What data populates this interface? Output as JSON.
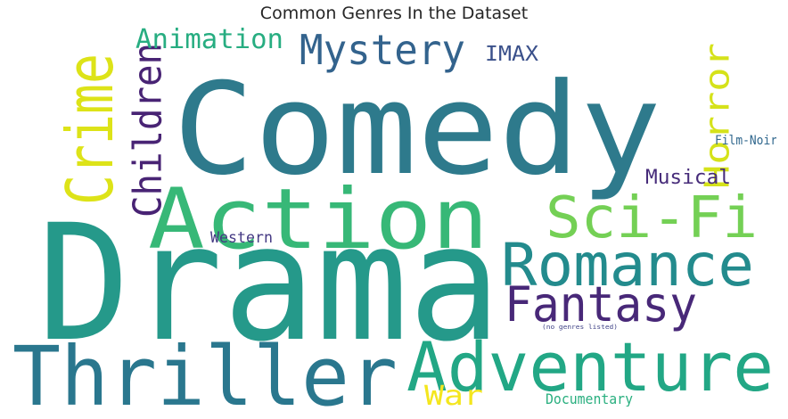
{
  "chart_data": {
    "type": "wordcloud",
    "title": "Common Genres In the Dataset",
    "background": "#ffffff",
    "colormap": "viridis",
    "words": [
      {
        "text": "Drama",
        "color": "#25998a"
      },
      {
        "text": "Comedy",
        "color": "#2e7a8c"
      },
      {
        "text": "Action",
        "color": "#37b877"
      },
      {
        "text": "Thriller",
        "color": "#2a778e"
      },
      {
        "text": "Adventure",
        "color": "#22a785"
      },
      {
        "text": "Romance",
        "color": "#238b8d"
      },
      {
        "text": "Sci-Fi",
        "color": "#74d055"
      },
      {
        "text": "Crime",
        "color": "#dde318"
      },
      {
        "text": "Fantasy",
        "color": "#482878"
      },
      {
        "text": "Mystery",
        "color": "#33638d"
      },
      {
        "text": "Children",
        "color": "#482374"
      },
      {
        "text": "Horror",
        "color": "#d5e21a"
      },
      {
        "text": "Animation",
        "color": "#27ad81"
      },
      {
        "text": "IMAX",
        "color": "#3b518b"
      },
      {
        "text": "Musical",
        "color": "#472c7a"
      },
      {
        "text": "Western",
        "color": "#443983"
      },
      {
        "text": "War",
        "color": "#f4e61e"
      },
      {
        "text": "Documentary",
        "color": "#29af7f"
      },
      {
        "text": "Film-Noir",
        "color": "#31688e"
      },
      {
        "text": "(no genres listed)",
        "color": "#414487"
      }
    ]
  }
}
